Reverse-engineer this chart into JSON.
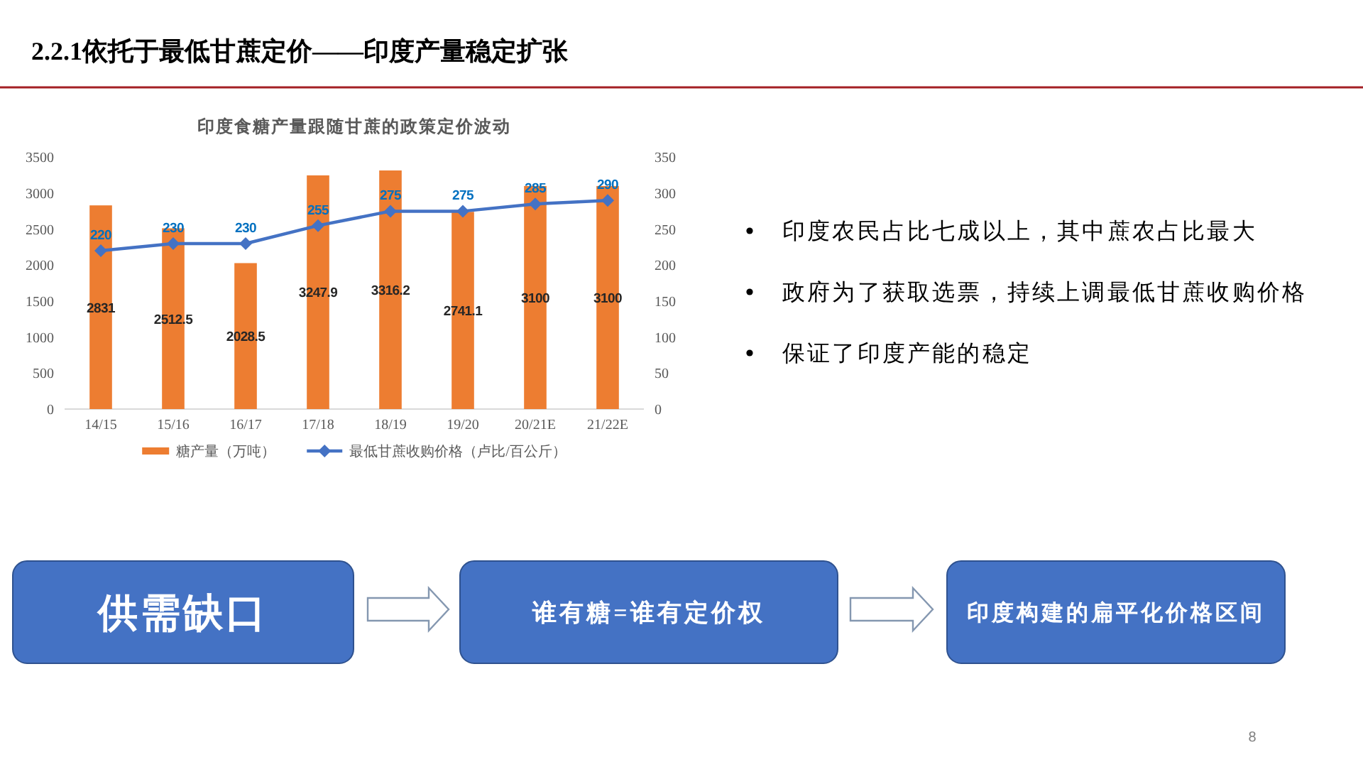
{
  "chart_data": {
    "type": "bar",
    "title": "2.2.1依托于最低甘蔗定价——印度产量稳定扩张",
    "subtitle": "印度食糖产量跟随甘蔗的政策定价波动",
    "categories": [
      "14/15",
      "15/16",
      "16/17",
      "17/18",
      "18/19",
      "19/20",
      "20/21E",
      "21/22E"
    ],
    "series": [
      {
        "name": "糖产量（万吨）",
        "color": "#ed7d31",
        "values": [
          2831,
          2512.5,
          2028.5,
          3247.9,
          3316.2,
          2741.1,
          3100,
          3100
        ]
      },
      {
        "name": "最低甘蔗收购价格（卢比/百公斤）",
        "type": "line",
        "axis": "y2",
        "color": "#4472c4",
        "values": [
          220,
          230,
          230,
          255,
          275,
          275,
          285,
          290
        ]
      }
    ],
    "ylim": [
      0,
      3500
    ],
    "yticks": [
      0,
      500,
      1000,
      1500,
      2000,
      2500,
      3000,
      3500
    ],
    "y2lim": [
      0,
      350
    ],
    "y2ticks": [
      0,
      50,
      100,
      150,
      200,
      250,
      300,
      350
    ],
    "data_labels": true,
    "marker": "diamond",
    "line_style": "solid",
    "legend": "bottom",
    "annotations": [
      "印度农民占比七成以上，其中蔗农占比最大",
      "政府为了获取选票，持续上调最低甘蔗收购价格",
      "保证了印度产能的稳定",
      "供需缺口",
      "谁有糖=谁有定价权",
      "印度构建的扁平化价格区间",
      "8"
    ]
  }
}
